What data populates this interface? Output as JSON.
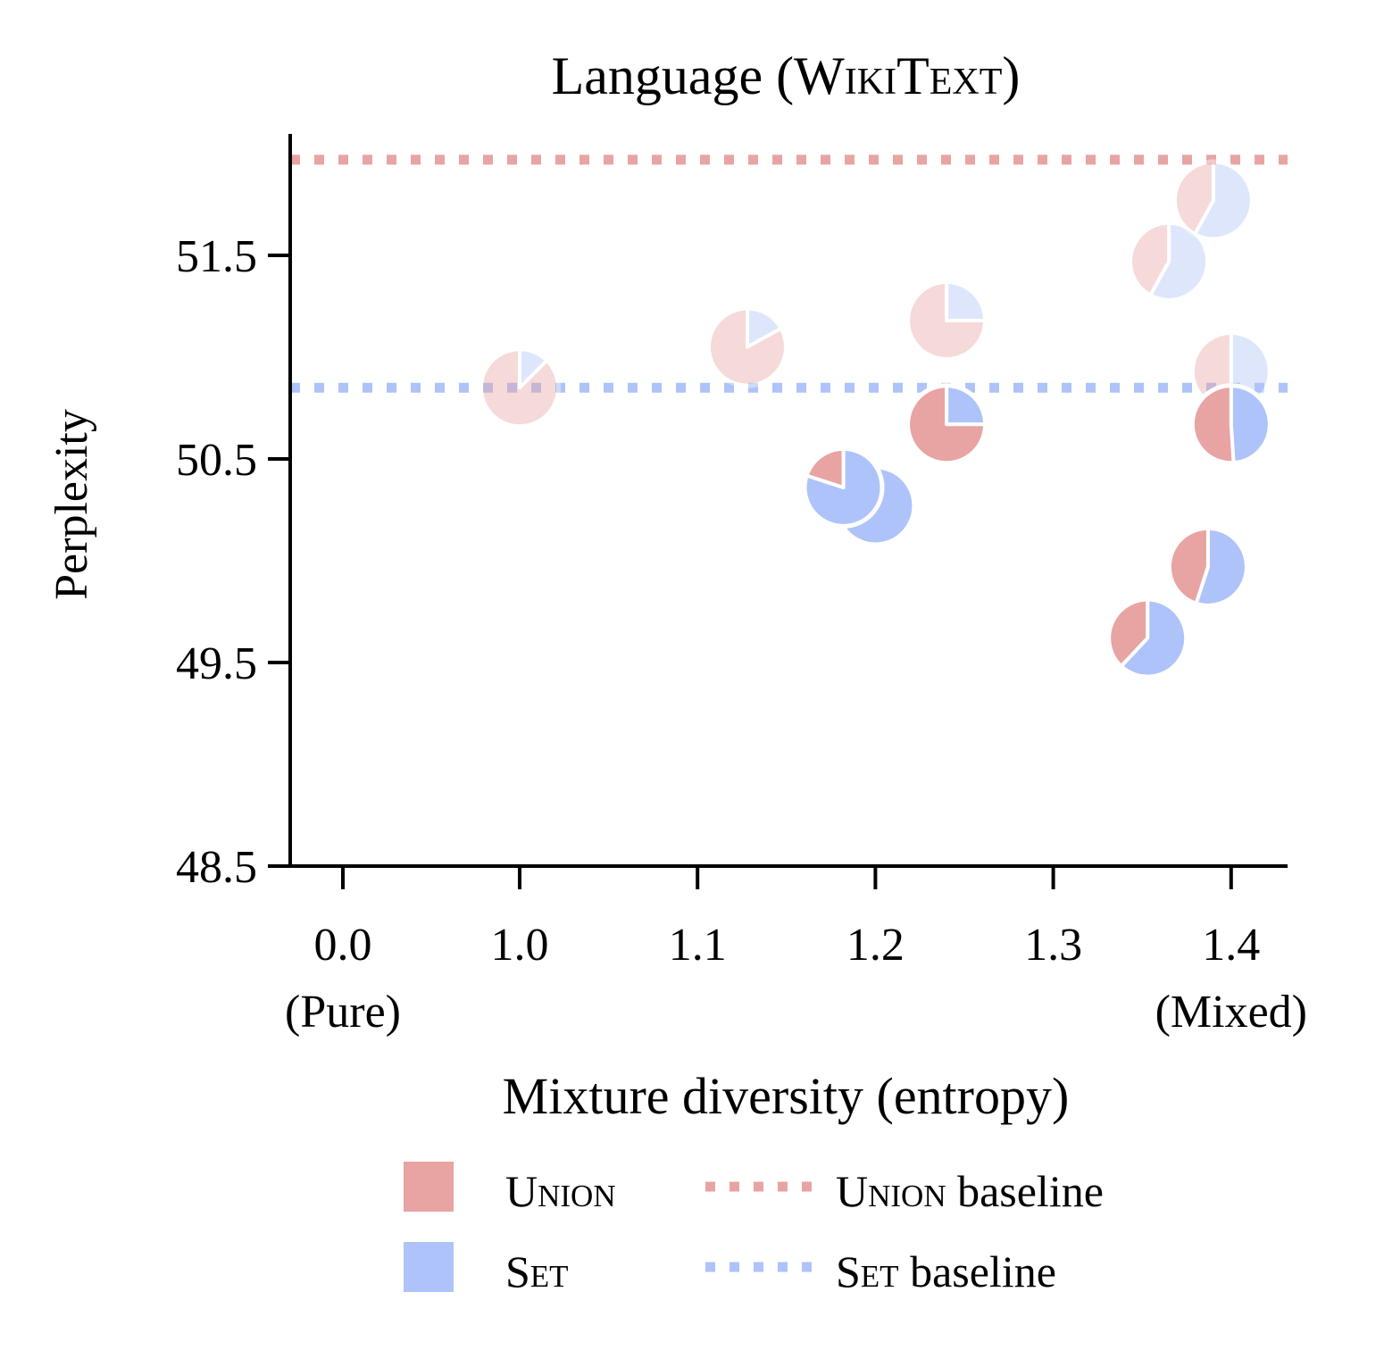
{
  "chart_data": {
    "type": "scatter",
    "title": {
      "pre": "Language (",
      "sc": "WikiText",
      "post": ")"
    },
    "xlabel": "Mixture diversity (entropy)",
    "ylabel": "Perplexity",
    "y_range": [
      48.5,
      52.1
    ],
    "x_ticks": [
      {
        "label": "0.0",
        "sub": "(Pure)"
      },
      {
        "label": "1.0",
        "sub": ""
      },
      {
        "label": "1.1",
        "sub": ""
      },
      {
        "label": "1.2",
        "sub": ""
      },
      {
        "label": "1.3",
        "sub": ""
      },
      {
        "label": "1.4",
        "sub": "(Mixed)"
      }
    ],
    "y_ticks": [
      "48.5",
      "49.5",
      "50.5",
      "51.5"
    ],
    "colors": {
      "union": "#e8a4a2",
      "set": "#aec3fa"
    },
    "baselines": [
      {
        "series": "union",
        "value": 51.97
      },
      {
        "series": "set",
        "value": 50.85
      }
    ],
    "legend": {
      "position": "bottom",
      "items": [
        {
          "sc": "Union",
          "suffix": "",
          "kind": "patch",
          "series": "union"
        },
        {
          "sc": "Union",
          "suffix": " baseline",
          "kind": "dotted",
          "series": "union"
        },
        {
          "sc": "Set",
          "suffix": "",
          "kind": "patch",
          "series": "set"
        },
        {
          "sc": "Set",
          "suffix": " baseline",
          "kind": "dotted",
          "series": "set"
        }
      ]
    },
    "points": [
      {
        "x": 1.0,
        "y": 50.85,
        "union_share": 0.875,
        "faded": true
      },
      {
        "x": 1.128,
        "y": 51.05,
        "union_share": 0.83,
        "faded": true
      },
      {
        "x": 1.24,
        "y": 51.18,
        "union_share": 0.75,
        "faded": true
      },
      {
        "x": 1.365,
        "y": 51.47,
        "union_share": 0.42,
        "faded": true
      },
      {
        "x": 1.39,
        "y": 51.77,
        "union_share": 0.42,
        "faded": true
      },
      {
        "x": 1.4,
        "y": 50.93,
        "union_share": 0.5,
        "faded": true
      },
      {
        "x": 1.24,
        "y": 50.67,
        "union_share": 0.75,
        "faded": false
      },
      {
        "x": 1.2,
        "y": 50.27,
        "union_share": 0.35,
        "faded": false
      },
      {
        "x": 1.182,
        "y": 50.36,
        "union_share": 0.2,
        "faded": false
      },
      {
        "x": 1.4,
        "y": 50.67,
        "union_share": 0.51,
        "faded": false
      },
      {
        "x": 1.387,
        "y": 49.97,
        "union_share": 0.45,
        "faded": false
      },
      {
        "x": 1.353,
        "y": 49.62,
        "union_share": 0.38,
        "faded": false
      }
    ]
  }
}
